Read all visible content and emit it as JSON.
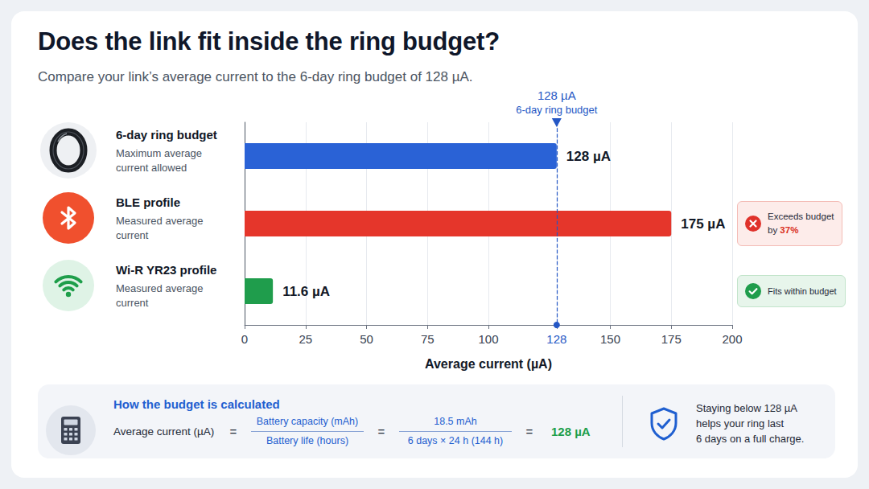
{
  "chart_data": {
    "type": "bar",
    "orientation": "horizontal",
    "title": "Does the link fit inside the ring budget?",
    "subtitle": "Compare your link’s average current to the 6-day ring budget of 128 µA.",
    "categories": [
      "6-day ring budget",
      "BLE profile",
      "Wi-R YR23 profile"
    ],
    "category_descriptions": [
      "Maximum average current allowed",
      "Measured average current",
      "Measured average current"
    ],
    "values": [
      128,
      175,
      11.6
    ],
    "value_labels": [
      "128 µA",
      "175 µA",
      "11.6 µA"
    ],
    "colors": [
      "#2a62d6",
      "#e5362b",
      "#1f9d4c"
    ],
    "data_labels": true,
    "xlim": [
      0,
      200
    ],
    "xticks": [
      0,
      25,
      50,
      75,
      100,
      128,
      150,
      175,
      200
    ],
    "xlabel": "Average current (µA)",
    "grid": true,
    "tick_labels": "x",
    "reference_line": {
      "value": 128,
      "label": "128 µA",
      "caption": "6-day ring budget"
    },
    "annotations": [
      null,
      {
        "text": "Exceeds budget by",
        "highlight": "37%"
      },
      {
        "text": "Fits within budget"
      }
    ]
  },
  "formula": {
    "title": "How the budget is calculated",
    "left": "Average current (µA)",
    "operator": "=",
    "fractions": [
      {
        "numerator": "Battery capacity (mAh)",
        "denominator": "Battery life (hours)"
      },
      {
        "numerator": "18.5 mAh",
        "denominator": "6 days × 24 h (144 h)"
      }
    ],
    "result": "128 µA"
  },
  "note": {
    "lines": [
      "Staying below 128 µA",
      "helps your ring last",
      "6 days on a full charge."
    ]
  }
}
